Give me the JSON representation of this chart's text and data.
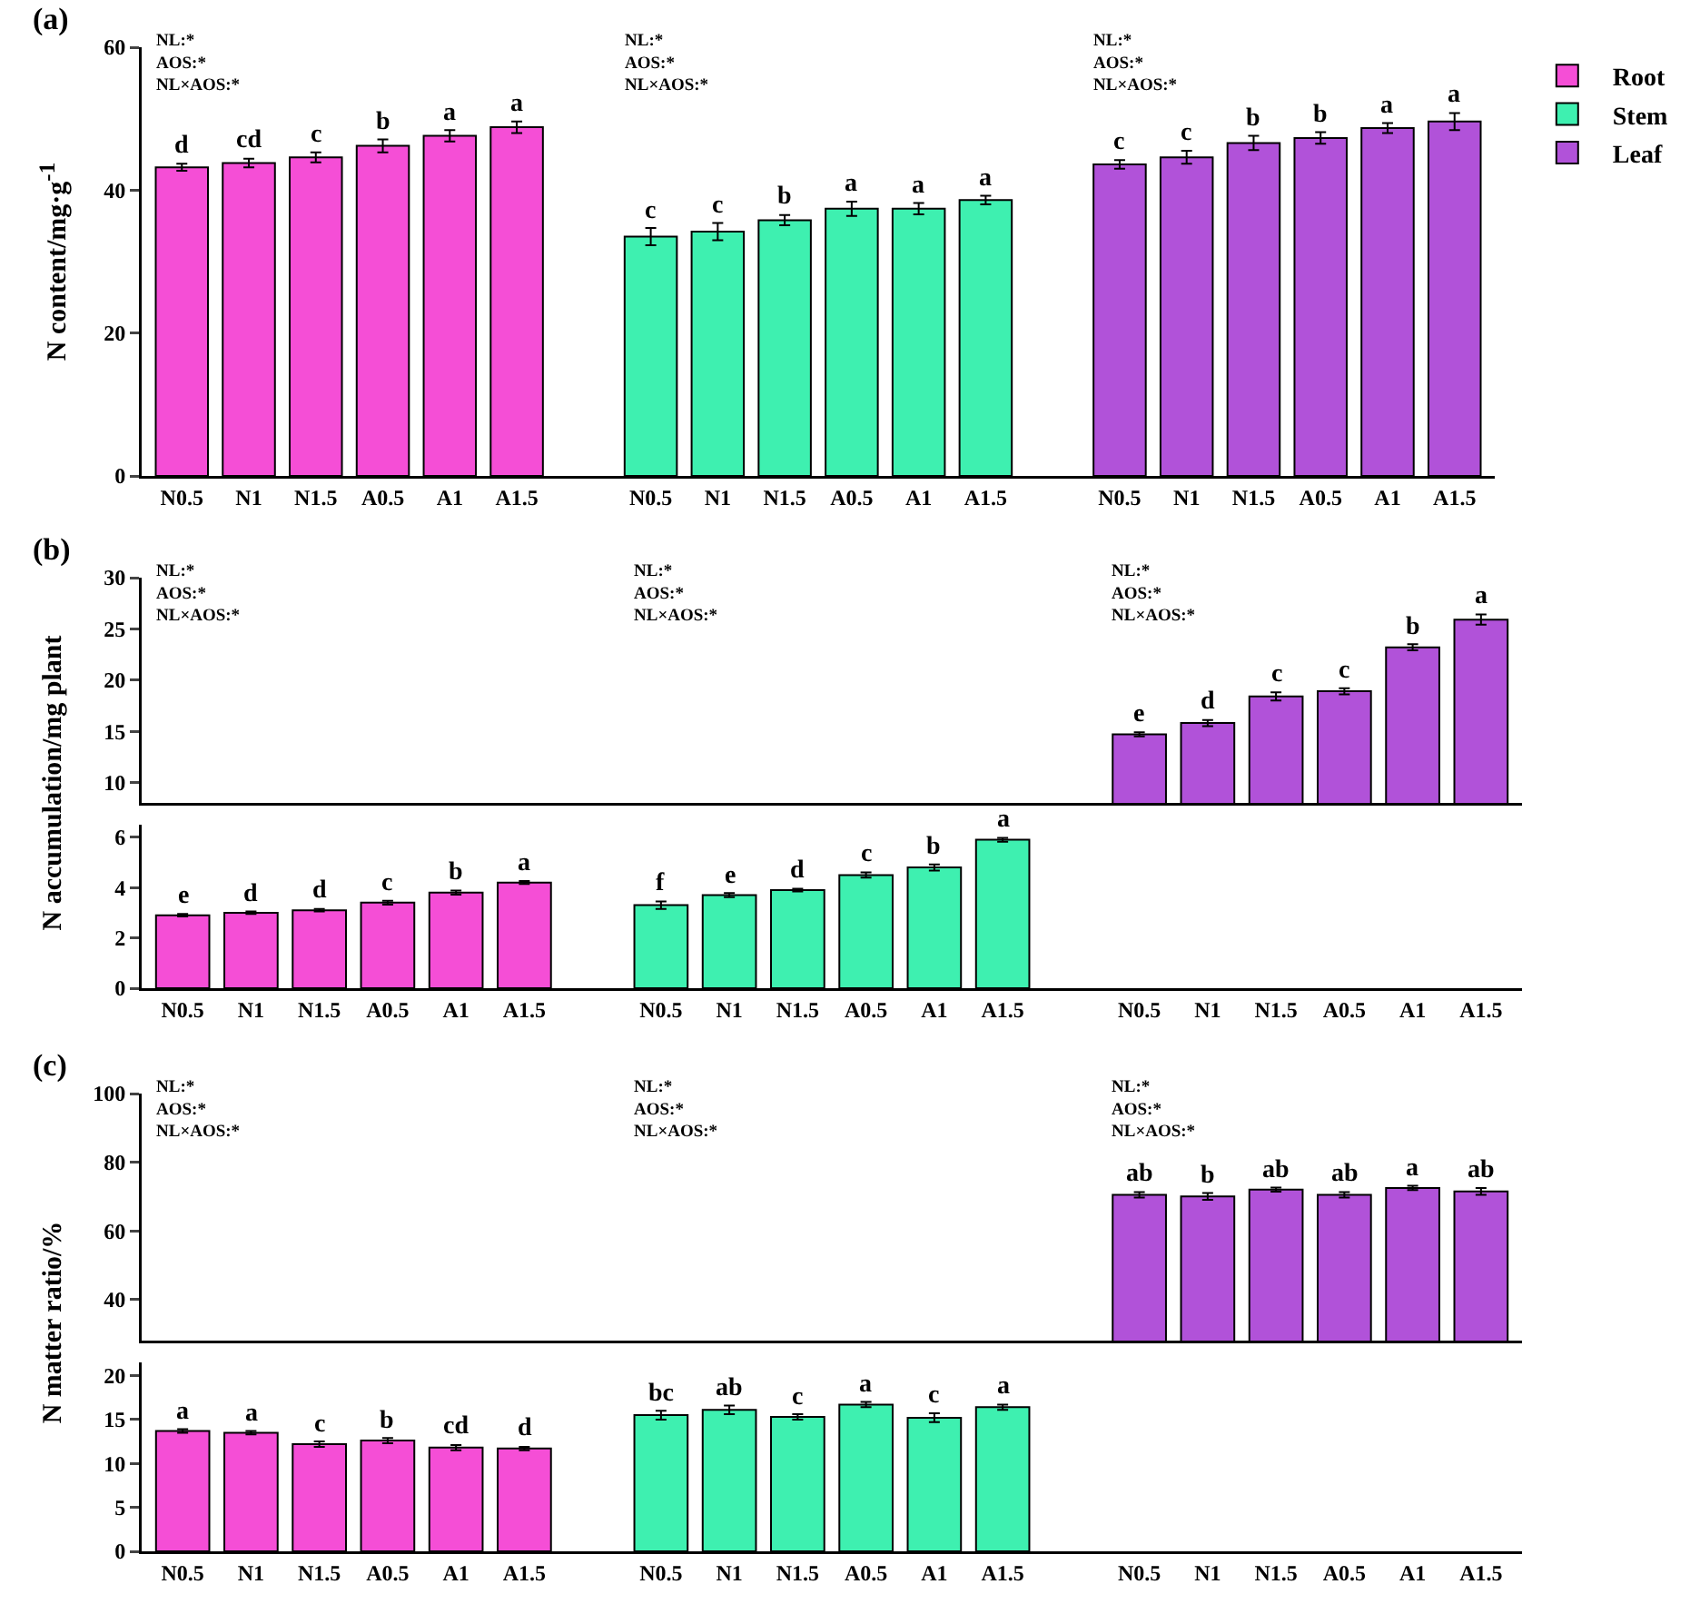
{
  "chart_data": [
    {
      "type": "bar",
      "ylabel": "N content/mg·g$^{-1}$",
      "categories": [
        "N0.5",
        "N1",
        "N1.5",
        "A0.5",
        "A1",
        "A1.5",
        null,
        "N0.5",
        "N1",
        "N1.5",
        "A0.5",
        "A1",
        "A1.5",
        null,
        "N0.5",
        "N1",
        "N1.5",
        "A0.5",
        "A1",
        "A1.5"
      ],
      "series": [
        {
          "name": "Root",
          "color": "#f54ed6",
          "values": [
            43.2,
            43.8,
            44.6,
            46.2,
            47.6,
            48.8,
            null,
            null,
            null,
            null,
            null,
            null,
            null,
            null,
            null,
            null,
            null,
            null,
            null,
            null
          ],
          "errors": [
            0.5,
            0.6,
            0.7,
            0.9,
            0.8,
            0.8,
            null,
            null,
            null,
            null,
            null,
            null,
            null,
            null,
            null,
            null,
            null,
            null,
            null,
            null
          ],
          "value_labels": [
            "d",
            "cd",
            "c",
            "b",
            "a",
            "a",
            null,
            null,
            null,
            null,
            null,
            null,
            null,
            null,
            null,
            null,
            null,
            null,
            null,
            null
          ]
        },
        {
          "name": "Stem",
          "color": "#3ef0b0",
          "values": [
            null,
            null,
            null,
            null,
            null,
            null,
            null,
            33.5,
            34.2,
            35.8,
            37.4,
            37.4,
            38.6,
            null,
            null,
            null,
            null,
            null,
            null,
            null
          ],
          "errors": [
            null,
            null,
            null,
            null,
            null,
            null,
            null,
            1.2,
            1.2,
            0.7,
            1.0,
            0.8,
            0.6,
            null,
            null,
            null,
            null,
            null,
            null,
            null
          ],
          "value_labels": [
            null,
            null,
            null,
            null,
            null,
            null,
            null,
            "c",
            "c",
            "b",
            "a",
            "a",
            "a",
            null,
            null,
            null,
            null,
            null,
            null,
            null
          ]
        },
        {
          "name": "Leaf",
          "color": "#b152d9",
          "values": [
            null,
            null,
            null,
            null,
            null,
            null,
            null,
            null,
            null,
            null,
            null,
            null,
            null,
            null,
            43.6,
            44.6,
            46.6,
            47.3,
            48.7,
            49.6
          ],
          "errors": [
            null,
            null,
            null,
            null,
            null,
            null,
            null,
            null,
            null,
            null,
            null,
            null,
            null,
            null,
            0.6,
            0.9,
            1.0,
            0.8,
            0.7,
            1.2
          ],
          "value_labels": [
            null,
            null,
            null,
            null,
            null,
            null,
            null,
            null,
            null,
            null,
            null,
            null,
            null,
            null,
            "c",
            "c",
            "b",
            "b",
            "a",
            "a"
          ]
        }
      ],
      "ylim": [
        0,
        60
      ],
      "yticks": [
        0,
        20,
        40,
        60
      ],
      "legend": "top right",
      "annotations": [
        "(a)",
        "NL:*\nAOS:*\nNL×AOS:*",
        "NL:*\nAOS:*\nNL×AOS:*",
        "NL:*\nAOS:*\nNL×AOS:*"
      ]
    },
    {
      "type": "bar",
      "categories": [
        null,
        null,
        null,
        null,
        null,
        null,
        null,
        null,
        null,
        null,
        null,
        null,
        null,
        null,
        null,
        null,
        null,
        null,
        null,
        null
      ],
      "series": [
        {
          "color": "#b152d9",
          "values": [
            null,
            null,
            null,
            null,
            null,
            null,
            null,
            null,
            null,
            null,
            null,
            null,
            null,
            null,
            14.7,
            15.8,
            18.4,
            18.9,
            23.2,
            25.9
          ],
          "errors": [
            null,
            null,
            null,
            null,
            null,
            null,
            null,
            null,
            null,
            null,
            null,
            null,
            null,
            null,
            0.2,
            0.3,
            0.4,
            0.3,
            0.3,
            0.5
          ],
          "value_labels": [
            null,
            null,
            null,
            null,
            null,
            null,
            null,
            null,
            null,
            null,
            null,
            null,
            null,
            null,
            "e",
            "d",
            "c",
            "c",
            "b",
            "a"
          ]
        }
      ],
      "ylim": [
        8,
        30
      ],
      "yticks": [
        10,
        15,
        20,
        25,
        30
      ],
      "tick_labels": "y",
      "annotations": [
        "(b)",
        "NL:*\nAOS:*\nNL×AOS:*",
        "NL:*\nAOS:*\nNL×AOS:*",
        "NL:*\nAOS:*\nNL×AOS:*"
      ]
    },
    {
      "type": "bar",
      "ylabel": "N accumulation/mg plant",
      "categories": [
        "N0.5",
        "N1",
        "N1.5",
        "A0.5",
        "A1",
        "A1.5",
        null,
        "N0.5",
        "N1",
        "N1.5",
        "A0.5",
        "A1",
        "A1.5",
        null,
        "N0.5",
        "N1",
        "N1.5",
        "A0.5",
        "A1",
        "A1.5"
      ],
      "series": [
        {
          "color": "#f54ed6",
          "values": [
            2.9,
            3.0,
            3.1,
            3.4,
            3.8,
            4.2,
            null,
            null,
            null,
            null,
            null,
            null,
            null,
            null,
            null,
            null,
            null,
            null,
            null,
            null
          ],
          "errors": [
            0.05,
            0.05,
            0.05,
            0.08,
            0.08,
            0.06,
            null,
            null,
            null,
            null,
            null,
            null,
            null,
            null,
            null,
            null,
            null,
            null,
            null,
            null
          ],
          "value_labels": [
            "e",
            "d",
            "d",
            "c",
            "b",
            "a",
            null,
            null,
            null,
            null,
            null,
            null,
            null,
            null,
            null,
            null,
            null,
            null,
            null,
            null
          ]
        },
        {
          "color": "#3ef0b0",
          "values": [
            null,
            null,
            null,
            null,
            null,
            null,
            null,
            3.3,
            3.7,
            3.9,
            4.5,
            4.8,
            5.9,
            null,
            null,
            null,
            null,
            null,
            null,
            null
          ],
          "errors": [
            null,
            null,
            null,
            null,
            null,
            null,
            null,
            0.15,
            0.08,
            0.05,
            0.1,
            0.12,
            0.08,
            null,
            null,
            null,
            null,
            null,
            null,
            null
          ],
          "value_labels": [
            null,
            null,
            null,
            null,
            null,
            null,
            null,
            "f",
            "e",
            "d",
            "c",
            "b",
            "a",
            null,
            null,
            null,
            null,
            null,
            null,
            null
          ]
        }
      ],
      "ylim": [
        0,
        6.5
      ],
      "yticks": [
        0,
        2,
        4,
        6
      ]
    },
    {
      "type": "bar",
      "categories": [
        null,
        null,
        null,
        null,
        null,
        null,
        null,
        null,
        null,
        null,
        null,
        null,
        null,
        null,
        null,
        null,
        null,
        null,
        null,
        null
      ],
      "series": [
        {
          "color": "#b152d9",
          "values": [
            null,
            null,
            null,
            null,
            null,
            null,
            null,
            null,
            null,
            null,
            null,
            null,
            null,
            null,
            70.5,
            70,
            72,
            70.5,
            72.5,
            71.5
          ],
          "errors": [
            null,
            null,
            null,
            null,
            null,
            null,
            null,
            null,
            null,
            null,
            null,
            null,
            null,
            null,
            0.8,
            1.0,
            0.6,
            0.8,
            0.6,
            1.0
          ],
          "value_labels": [
            null,
            null,
            null,
            null,
            null,
            null,
            null,
            null,
            null,
            null,
            null,
            null,
            null,
            null,
            "ab",
            "b",
            "ab",
            "ab",
            "a",
            "ab"
          ]
        }
      ],
      "ylim": [
        28,
        100
      ],
      "yticks": [
        40,
        60,
        80,
        100
      ],
      "tick_labels": "y",
      "annotations": [
        "(c)",
        "NL:*\nAOS:*\nNL×AOS:*",
        "NL:*\nAOS:*\nNL×AOS:*",
        "NL:*\nAOS:*\nNL×AOS:*"
      ]
    },
    {
      "type": "bar",
      "ylabel": "N matter ratio/%",
      "categories": [
        "N0.5",
        "N1",
        "N1.5",
        "A0.5",
        "A1",
        "A1.5",
        null,
        "N0.5",
        "N1",
        "N1.5",
        "A0.5",
        "A1",
        "A1.5",
        null,
        "N0.5",
        "N1",
        "N1.5",
        "A0.5",
        "A1",
        "A1.5"
      ],
      "series": [
        {
          "color": "#f54ed6",
          "values": [
            13.7,
            13.5,
            12.2,
            12.6,
            11.8,
            11.7,
            null,
            null,
            null,
            null,
            null,
            null,
            null,
            null,
            null,
            null,
            null,
            null,
            null,
            null
          ],
          "errors": [
            0.2,
            0.2,
            0.3,
            0.3,
            0.3,
            0.2,
            null,
            null,
            null,
            null,
            null,
            null,
            null,
            null,
            null,
            null,
            null,
            null,
            null,
            null
          ],
          "value_labels": [
            "a",
            "a",
            "c",
            "b",
            "cd",
            "d",
            null,
            null,
            null,
            null,
            null,
            null,
            null,
            null,
            null,
            null,
            null,
            null,
            null,
            null
          ]
        },
        {
          "color": "#3ef0b0",
          "values": [
            null,
            null,
            null,
            null,
            null,
            null,
            null,
            15.5,
            16.1,
            15.3,
            16.7,
            15.2,
            16.4,
            null,
            null,
            null,
            null,
            null,
            null,
            null
          ],
          "errors": [
            null,
            null,
            null,
            null,
            null,
            null,
            null,
            0.5,
            0.5,
            0.3,
            0.3,
            0.5,
            0.3,
            null,
            null,
            null,
            null,
            null,
            null,
            null
          ],
          "value_labels": [
            null,
            null,
            null,
            null,
            null,
            null,
            null,
            "bc",
            "ab",
            "c",
            "a",
            "c",
            "a",
            null,
            null,
            null,
            null,
            null,
            null,
            null
          ]
        }
      ],
      "ylim": [
        0,
        21.5
      ],
      "yticks": [
        0,
        5,
        10,
        15,
        20
      ]
    }
  ]
}
